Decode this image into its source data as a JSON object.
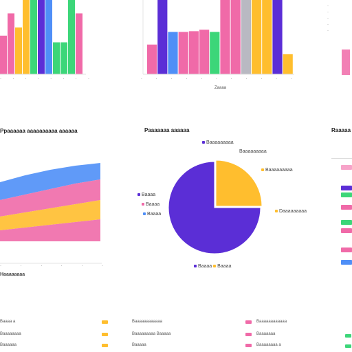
{
  "palette": {
    "purple": "#5b2ed6",
    "blue": "#4f8ff7",
    "pink": "#f06aa8",
    "yellow": "#ffbe2e",
    "green": "#3cd679",
    "gray": "#b9b9c2",
    "light_pink": "#f7a3c9"
  },
  "chart_data": [
    {
      "type": "bar",
      "region": "top-left",
      "title": "",
      "values": [
        52,
        82,
        63,
        100,
        100,
        100,
        100,
        43,
        43,
        100,
        82
      ],
      "colors": [
        "pink",
        "pink",
        "yellow",
        "yellow",
        "green",
        "purple",
        "blue",
        "green",
        "green",
        "green",
        "pink"
      ],
      "ylim": [
        0,
        100
      ]
    },
    {
      "type": "bar",
      "region": "top-center",
      "title": "",
      "xlabel": "Zaaaa",
      "values": [
        40,
        100,
        57,
        57,
        58,
        60,
        57,
        100,
        100,
        100,
        100,
        100,
        100,
        27
      ],
      "colors": [
        "pink",
        "purple",
        "blue",
        "pink",
        "pink",
        "pink",
        "green",
        "pink",
        "pink",
        "gray",
        "yellow",
        "yellow",
        "purple",
        "yellow"
      ],
      "ylim": [
        0,
        100
      ]
    },
    {
      "type": "area",
      "region": "middle-left",
      "title": "Ppaaaaaa aaaaaaaaaa aaaaaa",
      "xlabel": "Haaaaaaaa",
      "series": [
        {
          "name": "",
          "color": "pink",
          "values": [
            20,
            22,
            24,
            26,
            28
          ]
        },
        {
          "name": "",
          "color": "yellow",
          "values": [
            30,
            33,
            36,
            39,
            42
          ]
        },
        {
          "name": "",
          "color": "pink",
          "values": [
            42,
            46,
            50,
            54,
            57
          ]
        },
        {
          "name": "",
          "color": "blue",
          "values": [
            55,
            60,
            64,
            67,
            69
          ]
        }
      ]
    },
    {
      "type": "pie",
      "region": "center",
      "title": "Paaaaaaa aaaaaa",
      "slices": [
        {
          "label": "Aaaaaaaaa",
          "value": 75,
          "color": "purple"
        },
        {
          "label": "Aaaaaaaaa",
          "value": 25,
          "color": "yellow"
        }
      ],
      "annotations": [
        "Baaaaaaaaa",
        "Baaaaaaaaa",
        "Baaaaaaaaa",
        "Daaaaaaaaa",
        "Baaaa",
        "Baaaa",
        "Baaaa",
        "Baaaa"
      ]
    },
    {
      "type": "bar",
      "region": "middle-right",
      "title": "Raaaaa",
      "legend_colors": [
        "light_pink",
        "purple",
        "green",
        "pink",
        "green",
        "pink",
        "pink",
        "blue"
      ]
    }
  ],
  "footer_legend": {
    "col1": [
      "Baaaa a",
      "Baaaaaaaa",
      "Baaaaaa"
    ],
    "col2": [
      "Baaaaaaaaaaaa",
      "Baaaaaaaaa Baaaaa",
      "Baaaaa"
    ],
    "col3": [
      "Baaaaaaaaaaaa",
      "Baaaaaaa",
      "Baaaaaaaa a"
    ]
  }
}
